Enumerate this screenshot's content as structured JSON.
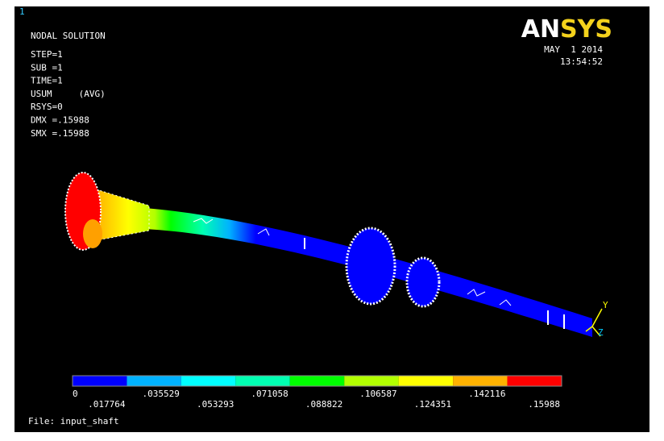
{
  "window_number": "1",
  "header": {
    "title": "NODAL SOLUTION",
    "lines": [
      "STEP=1",
      "SUB =1",
      "TIME=1",
      "USUM     (AVG)",
      "RSYS=0",
      "DMX =.15988",
      "SMX =.15988"
    ]
  },
  "logo": "ANSYS",
  "date": "MAY  1 2014",
  "time": "13:54:52",
  "legend": {
    "colors": [
      "#0000ff",
      "#00b2ff",
      "#00ffff",
      "#00ffb2",
      "#00ff00",
      "#b2ff00",
      "#ffff00",
      "#ffb200",
      "#ff0000"
    ],
    "labels": [
      "0",
      ".017764",
      ".035529",
      ".053293",
      ".071058",
      ".088822",
      ".106587",
      ".124351",
      ".142116",
      ".15988"
    ]
  },
  "triad": [
    "Y",
    "Z"
  ],
  "file": "File: input_shaft"
}
